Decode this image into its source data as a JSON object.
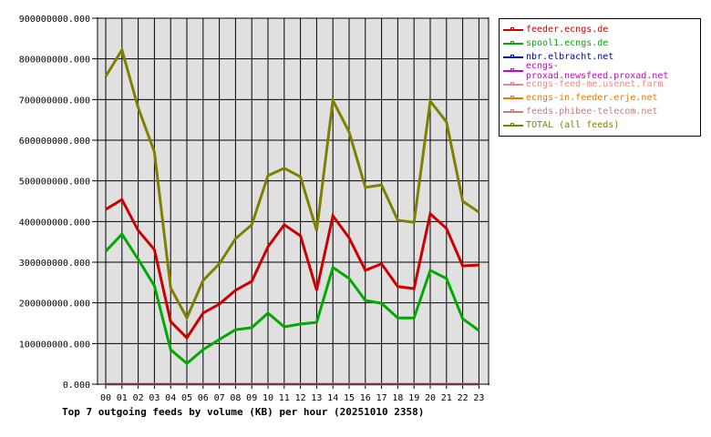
{
  "chart_data": {
    "type": "line",
    "title": "Top 7 outgoing feeds by volume (KB) per hour (20251010 2358)",
    "xlabel": "",
    "ylabel": "",
    "ylim": [
      0,
      900000000
    ],
    "grid": true,
    "legend_position": "right",
    "categories": [
      "00",
      "01",
      "02",
      "03",
      "04",
      "05",
      "06",
      "07",
      "08",
      "09",
      "10",
      "11",
      "12",
      "13",
      "14",
      "15",
      "16",
      "17",
      "18",
      "19",
      "20",
      "21",
      "22",
      "23"
    ],
    "y_ticks": [
      "0.000",
      "100000000.000",
      "200000000.000",
      "300000000.000",
      "400000000.000",
      "500000000.000",
      "600000000.000",
      "700000000.000",
      "800000000.000",
      "900000000.000"
    ],
    "series": [
      {
        "name": "feeder.ecngs.de",
        "color": "#cc0000",
        "values": [
          430000000,
          454000000,
          378000000,
          331000000,
          154000000,
          114000000,
          175000000,
          197000000,
          231000000,
          253000000,
          338000000,
          392000000,
          365000000,
          231000000,
          414000000,
          360000000,
          280000000,
          296000000,
          240000000,
          235000000,
          419000000,
          383000000,
          291000000,
          293000000
        ]
      },
      {
        "name": "spool1.ecngs.de",
        "color": "#00aa00",
        "values": [
          327000000,
          369000000,
          307000000,
          242000000,
          85000000,
          51000000,
          85000000,
          110000000,
          134000000,
          139000000,
          175000000,
          141000000,
          148000000,
          152000000,
          287000000,
          260000000,
          206000000,
          199000000,
          163000000,
          163000000,
          280000000,
          260000000,
          161000000,
          132000000
        ]
      },
      {
        "name": "nbr.elbracht.net",
        "color": "#0000aa",
        "values": [
          0,
          0,
          0,
          0,
          0,
          0,
          0,
          0,
          0,
          0,
          0,
          0,
          0,
          0,
          0,
          0,
          0,
          0,
          0,
          0,
          0,
          0,
          0,
          0
        ]
      },
      {
        "name": "ecngs-proxad.newsfeed.proxad.net",
        "color": "#cc00cc",
        "values": [
          0,
          0,
          0,
          0,
          0,
          0,
          0,
          0,
          0,
          0,
          0,
          0,
          0,
          0,
          0,
          0,
          0,
          0,
          0,
          0,
          0,
          0,
          0,
          0
        ]
      },
      {
        "name": "ecngs-feed-me.usenet.farm",
        "color": "#ee8888",
        "values": [
          0,
          0,
          0,
          0,
          0,
          0,
          0,
          0,
          0,
          0,
          0,
          0,
          0,
          0,
          0,
          0,
          0,
          0,
          0,
          0,
          0,
          0,
          0,
          0
        ]
      },
      {
        "name": "ecngs-in.feeder.erje.net",
        "color": "#ee7700",
        "values": [
          0,
          0,
          0,
          0,
          0,
          0,
          0,
          0,
          0,
          0,
          0,
          0,
          0,
          0,
          0,
          0,
          0,
          0,
          0,
          0,
          0,
          0,
          0,
          0
        ]
      },
      {
        "name": "feeds.phibee-telecom.net",
        "color": "#c08080",
        "values": [
          0,
          0,
          0,
          0,
          0,
          0,
          0,
          0,
          0,
          0,
          0,
          0,
          0,
          0,
          0,
          0,
          0,
          0,
          0,
          0,
          0,
          0,
          0,
          0
        ]
      },
      {
        "name": "TOTAL (all feeds)",
        "color": "#808000",
        "values": [
          757000000,
          822000000,
          680000000,
          571000000,
          237000000,
          163000000,
          255000000,
          296000000,
          358000000,
          392000000,
          513000000,
          531000000,
          510000000,
          378000000,
          698000000,
          620000000,
          484000000,
          490000000,
          403000000,
          398000000,
          696000000,
          645000000,
          450000000,
          423000000
        ]
      }
    ]
  }
}
